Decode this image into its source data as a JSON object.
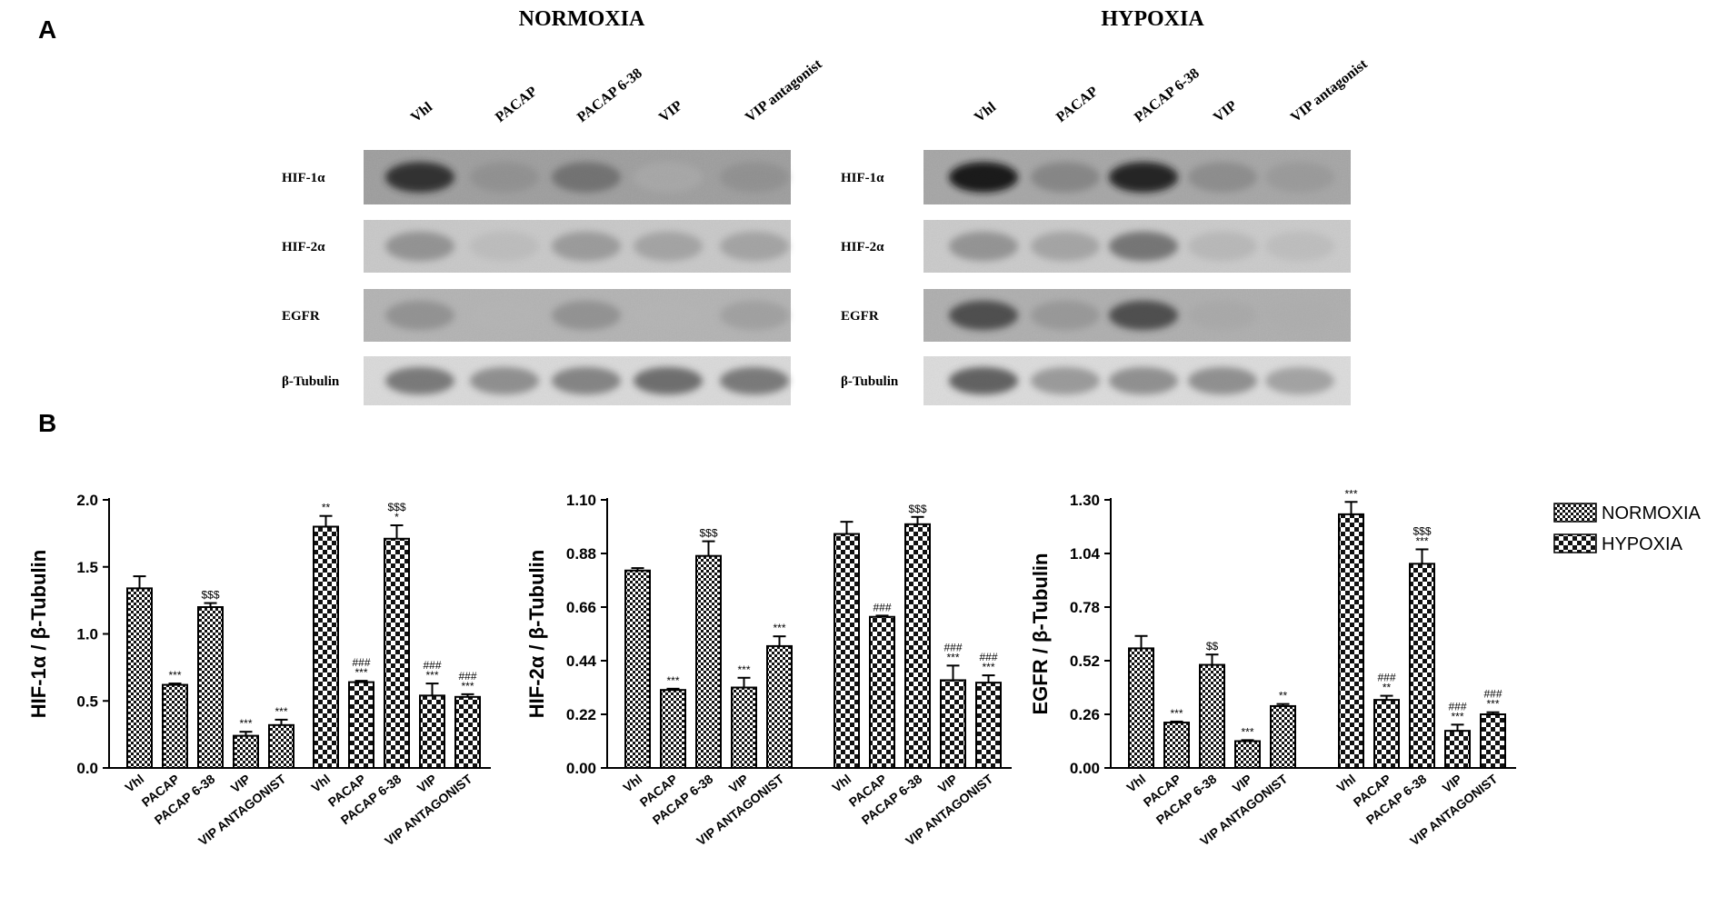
{
  "panel_a": {
    "letter": "A",
    "blots": [
      {
        "condition": "NORMOXIA",
        "lanes": [
          "Vhl",
          "PACAP",
          "PACAP 6-38",
          "VIP",
          "VIP antagonist"
        ],
        "rows": [
          {
            "label": "HIF-1α",
            "intensity": [
              0.85,
              0.35,
              0.55,
              0.1,
              0.35
            ],
            "bg": "#9c9c9c"
          },
          {
            "label": "HIF-2α",
            "intensity": [
              0.45,
              0.15,
              0.4,
              0.35,
              0.35
            ],
            "bg": "#c8c8c8"
          },
          {
            "label": "EGFR",
            "intensity": [
              0.4,
              0.1,
              0.4,
              0.1,
              0.3
            ],
            "bg": "#b2b2b2"
          },
          {
            "label": "β-Tubulin",
            "intensity": [
              0.6,
              0.5,
              0.55,
              0.65,
              0.6
            ],
            "bg": "#dadada"
          }
        ]
      },
      {
        "condition": "HYPOXIA",
        "lanes": [
          "Vhl",
          "PACAP",
          "PACAP 6-38",
          "VIP",
          "VIP antagonist"
        ],
        "rows": [
          {
            "label": "HIF-1α",
            "intensity": [
              0.95,
              0.45,
              0.9,
              0.4,
              0.3
            ],
            "bg": "#a4a4a4"
          },
          {
            "label": "HIF-2α",
            "intensity": [
              0.45,
              0.35,
              0.6,
              0.2,
              0.15
            ],
            "bg": "#cacaca"
          },
          {
            "label": "EGFR",
            "intensity": [
              0.75,
              0.35,
              0.75,
              0.2,
              0.15
            ],
            "bg": "#adadad"
          },
          {
            "label": "β-Tubulin",
            "intensity": [
              0.7,
              0.45,
              0.5,
              0.5,
              0.4
            ],
            "bg": "#dcdcdc"
          }
        ]
      }
    ]
  },
  "panel_b": {
    "letter": "B"
  },
  "legend": {
    "items": [
      {
        "label": "NORMOXIA",
        "pattern": "normoxia"
      },
      {
        "label": "HYPOXIA",
        "pattern": "hypoxia"
      }
    ]
  },
  "chart_data": [
    {
      "type": "bar",
      "ylabel": "HIF-1α / β-Tubulin",
      "ylim": [
        0,
        2.0
      ],
      "yticks": [
        "0.0",
        "0.5",
        "1.0",
        "1.5",
        "2.0"
      ],
      "categories": [
        "Vhl",
        "PACAP",
        "PACAP 6-38",
        "VIP",
        "VIP ANTAGONIST"
      ],
      "series": [
        {
          "name": "NORMOXIA",
          "values": [
            1.34,
            0.62,
            1.2,
            0.24,
            0.32
          ],
          "errors": [
            0.09,
            0.01,
            0.03,
            0.03,
            0.04
          ],
          "sig_top": [
            "",
            "",
            "$$$",
            "",
            ""
          ],
          "sig_bottom": [
            "",
            "***",
            "",
            "***",
            "***"
          ]
        },
        {
          "name": "HYPOXIA",
          "values": [
            1.8,
            0.64,
            1.71,
            0.54,
            0.53
          ],
          "errors": [
            0.08,
            0.01,
            0.1,
            0.09,
            0.02
          ],
          "sig_top": [
            "",
            "###",
            "$$$",
            "###",
            "###"
          ],
          "sig_bottom": [
            "**",
            "***",
            "*",
            "***",
            "***"
          ]
        }
      ]
    },
    {
      "type": "bar",
      "ylabel": "HIF-2α / β-Tubulin",
      "ylim": [
        0,
        1.1
      ],
      "yticks": [
        "0.00",
        "0.22",
        "0.44",
        "0.66",
        "0.88",
        "1.10"
      ],
      "categories": [
        "Vhl",
        "PACAP",
        "PACAP 6-38",
        "VIP",
        "VIP ANTAGONIST"
      ],
      "series": [
        {
          "name": "NORMOXIA",
          "values": [
            0.81,
            0.32,
            0.87,
            0.33,
            0.5
          ],
          "errors": [
            0.01,
            0.005,
            0.06,
            0.04,
            0.04
          ],
          "sig_top": [
            "",
            "",
            "$$$",
            "",
            ""
          ],
          "sig_bottom": [
            "",
            "***",
            "",
            "***",
            "***"
          ]
        },
        {
          "name": "HYPOXIA",
          "values": [
            0.96,
            0.62,
            1.0,
            0.36,
            0.35
          ],
          "errors": [
            0.05,
            0.005,
            0.03,
            0.06,
            0.03
          ],
          "sig_top": [
            "",
            "###",
            "$$$",
            "###",
            "###"
          ],
          "sig_bottom": [
            "",
            "",
            "",
            "***",
            "***"
          ]
        }
      ]
    },
    {
      "type": "bar",
      "ylabel": "EGFR / β-Tubulin",
      "ylim": [
        0,
        1.3
      ],
      "yticks": [
        "0.00",
        "0.26",
        "0.52",
        "0.78",
        "1.04",
        "1.30"
      ],
      "categories": [
        "Vhl",
        "PACAP",
        "PACAP 6-38",
        "VIP",
        "VIP ANTAGONIST"
      ],
      "series": [
        {
          "name": "NORMOXIA",
          "values": [
            0.58,
            0.22,
            0.5,
            0.13,
            0.3
          ],
          "errors": [
            0.06,
            0.005,
            0.05,
            0.005,
            0.01
          ],
          "sig_top": [
            "",
            "",
            "$$",
            "",
            ""
          ],
          "sig_bottom": [
            "",
            "***",
            "",
            "***",
            "**"
          ]
        },
        {
          "name": "HYPOXIA",
          "values": [
            1.23,
            0.33,
            0.99,
            0.18,
            0.26
          ],
          "errors": [
            0.06,
            0.02,
            0.07,
            0.03,
            0.01
          ],
          "sig_top": [
            "",
            "###",
            "$$$",
            "###",
            "###"
          ],
          "sig_bottom": [
            "***",
            "**",
            "***",
            "***",
            "***"
          ]
        }
      ]
    }
  ]
}
